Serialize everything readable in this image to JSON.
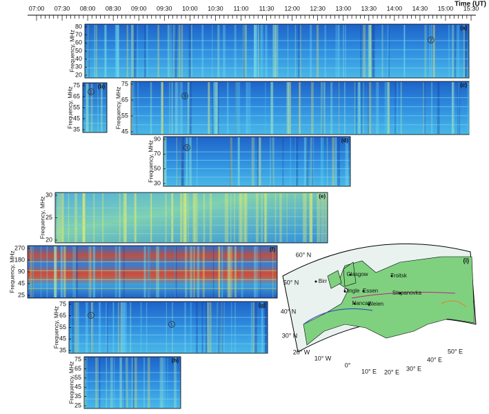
{
  "time_axis": {
    "title": "Time (UT)",
    "labels": [
      "07:00",
      "07:30",
      "08:00",
      "08:30",
      "09:00",
      "09:30",
      "10:00",
      "10:30",
      "11:00",
      "11:30",
      "12:00",
      "12:30",
      "13:00",
      "13:30",
      "14:00",
      "14:30",
      "15:00",
      "15:30"
    ]
  },
  "panels": [
    {
      "label": "(a)",
      "y_label": "Frequency, MHz",
      "yticks": [
        "80",
        "70",
        "60",
        "50",
        "40",
        "30",
        "20"
      ],
      "markers": [
        "2"
      ]
    },
    {
      "label": "(b)",
      "y_label": "Frequency, MHz",
      "yticks": [
        "75",
        "65",
        "55",
        "45",
        "35"
      ],
      "markers": [
        "1"
      ]
    },
    {
      "label": "(c)",
      "y_label": "Frequency, MHz",
      "yticks": [
        "75",
        "65",
        "55",
        "45"
      ],
      "markers": [
        "3"
      ]
    },
    {
      "label": "(d)",
      "y_label": "Frequency, MHz",
      "yticks": [
        "90",
        "70",
        "50",
        "30"
      ],
      "markers": [
        "3"
      ]
    },
    {
      "label": "(e)",
      "y_label": "Frequency, MHz",
      "yticks": [
        "30",
        "25",
        "20"
      ],
      "markers": []
    },
    {
      "label": "(f)",
      "y_label": "Frequency, MHz",
      "yticks": [
        "270",
        "180",
        "90",
        "45",
        "25"
      ],
      "markers": []
    },
    {
      "label": "(g)",
      "y_label": "Frequency, MHz",
      "yticks": [
        "75",
        "65",
        "55",
        "45",
        "35"
      ],
      "markers": [
        "1",
        "1"
      ]
    },
    {
      "label": "(h)",
      "y_label": "Frequency, MHz",
      "yticks": [
        "75",
        "65",
        "55",
        "45",
        "35",
        "25"
      ],
      "markers": []
    }
  ],
  "map": {
    "label": "(i)",
    "latitudes": [
      "60° N",
      "50° N",
      "40° N",
      "30° N"
    ],
    "longitudes": [
      "20° W",
      "10° W",
      "0°",
      "10° E",
      "20° E",
      "30° E",
      "40° E",
      "50° E"
    ],
    "stations": [
      "Birr",
      "Glasgow",
      "Dingle",
      "Essen",
      "Troitsk",
      "Stepanovka",
      "Nancay",
      "Bleien"
    ]
  }
}
